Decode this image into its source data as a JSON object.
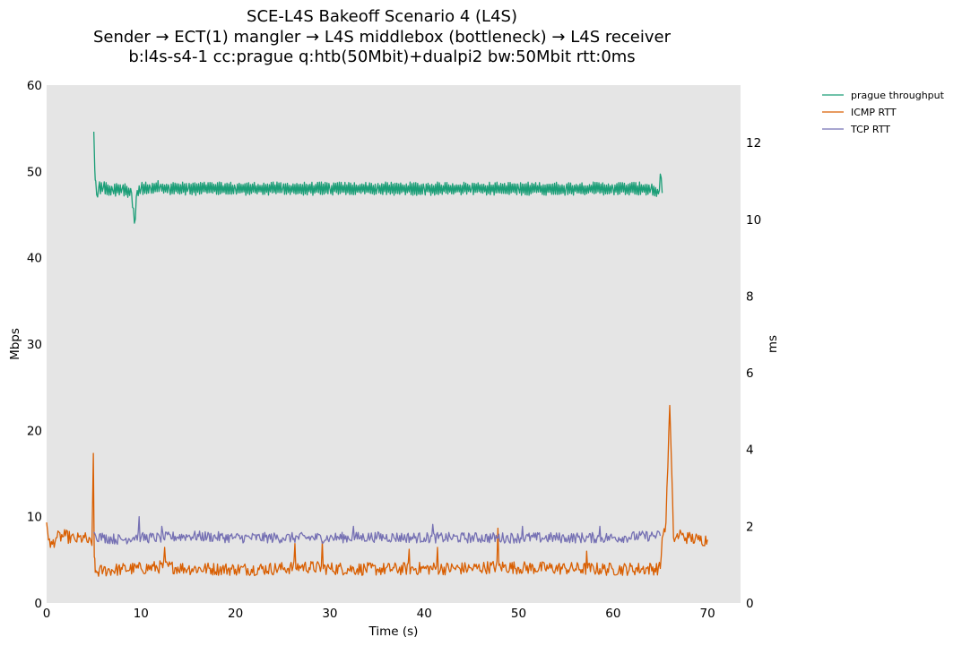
{
  "chart_data": {
    "type": "line",
    "title_lines": [
      "SCE-L4S Bakeoff Scenario 4 (L4S)",
      "Sender → ECT(1) mangler → L4S middlebox (bottleneck) → L4S receiver",
      "b:l4s-s4-1 cc:prague q:htb(50Mbit)+dualpi2 bw:50Mbit rtt:0ms"
    ],
    "xlabel": "Time (s)",
    "ylabel": "Mbps",
    "y2label": "ms",
    "xlim": [
      0,
      73.5
    ],
    "ylim": [
      0,
      60
    ],
    "y2lim": [
      0,
      13.5
    ],
    "xticks": [
      0,
      10,
      20,
      30,
      40,
      50,
      60,
      70
    ],
    "yticks": [
      0,
      10,
      20,
      30,
      40,
      50,
      60
    ],
    "y2ticks": [
      0,
      2,
      4,
      6,
      8,
      10,
      12
    ],
    "background": "#e5e5e5",
    "legend_position": "outside-right",
    "series": [
      {
        "name": "prague throughput",
        "axis": "left",
        "color": "#1b9e77",
        "x": [
          5.0,
          5.15,
          5.3,
          5.5,
          6,
          7,
          8,
          9,
          9.3,
          9.6,
          10,
          11,
          12,
          13,
          15,
          20,
          25,
          30,
          35,
          40,
          45,
          50,
          55,
          60,
          64,
          64.8,
          65.0,
          65.2
        ],
        "y": [
          54.6,
          49.0,
          47.3,
          48.0,
          48.1,
          47.8,
          48.0,
          47.5,
          44.0,
          47.8,
          48.0,
          48.1,
          48.2,
          48.0,
          48.0,
          48.0,
          48.0,
          48.0,
          48.0,
          48.0,
          48.0,
          48.0,
          48.0,
          48.0,
          48.0,
          47.4,
          49.7,
          47.5
        ],
        "oscillation": 0.65
      },
      {
        "name": "ICMP RTT",
        "axis": "right",
        "color": "#d95f02",
        "x": [
          0,
          0.4,
          1,
          2,
          3,
          4,
          4.8,
          4.95,
          5.05,
          5.15,
          6,
          8,
          10,
          12.5,
          15,
          20,
          25,
          27,
          30,
          35,
          40,
          45,
          47.8,
          50,
          55,
          60,
          65,
          65.2,
          65.6,
          66.0,
          66.4,
          67,
          68,
          69,
          70
        ],
        "y": [
          2.1,
          1.45,
          1.7,
          1.75,
          1.65,
          1.7,
          1.5,
          3.9,
          1.2,
          0.8,
          0.85,
          0.88,
          0.9,
          0.95,
          0.9,
          0.88,
          0.9,
          0.95,
          0.9,
          0.88,
          0.9,
          0.9,
          0.95,
          0.92,
          0.9,
          0.88,
          0.9,
          1.7,
          2.1,
          5.15,
          1.7,
          1.75,
          1.7,
          1.65,
          1.65
        ],
        "noise": 0.17,
        "spikes": [
          [
            12.5,
            1.45
          ],
          [
            26.3,
            1.55
          ],
          [
            29.2,
            1.6
          ],
          [
            38.4,
            1.4
          ],
          [
            41.4,
            1.45
          ],
          [
            47.8,
            1.95
          ],
          [
            57.2,
            1.35
          ],
          [
            67.1,
            1.9
          ]
        ]
      },
      {
        "name": "TCP RTT",
        "axis": "right",
        "color": "#7570b3",
        "x": [
          5.0,
          5.2,
          6,
          8,
          9.8,
          10,
          12,
          15,
          20,
          25,
          30,
          35,
          40,
          45,
          50,
          55,
          60,
          64,
          65.0
        ],
        "y": [
          1.85,
          1.75,
          1.7,
          1.65,
          1.75,
          1.7,
          1.7,
          1.75,
          1.7,
          1.7,
          1.7,
          1.72,
          1.7,
          1.7,
          1.7,
          1.7,
          1.7,
          1.75,
          1.75
        ],
        "noise": 0.14,
        "spikes": [
          [
            9.8,
            2.25
          ],
          [
            12.2,
            2.0
          ],
          [
            32.5,
            2.0
          ],
          [
            40.9,
            2.05
          ],
          [
            50.4,
            2.0
          ],
          [
            58.6,
            2.0
          ]
        ]
      }
    ]
  }
}
